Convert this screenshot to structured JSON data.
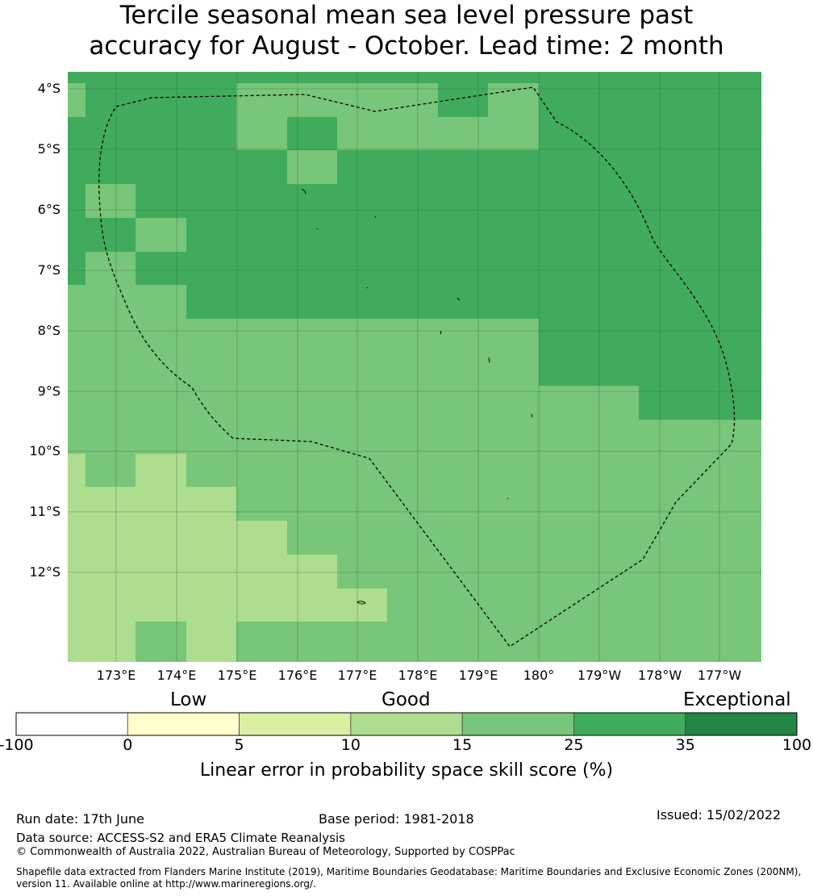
{
  "title": {
    "line1": "Tercile seasonal mean sea level pressure past",
    "line2": "accuracy for August - October. Lead time: 2 month"
  },
  "map": {
    "lat_labels": [
      "4°S",
      "5°S",
      "6°S",
      "7°S",
      "8°S",
      "9°S",
      "10°S",
      "11°S",
      "12°S"
    ],
    "lon_labels": [
      "173°E",
      "174°E",
      "175°E",
      "176°E",
      "177°E",
      "178°E",
      "179°E",
      "180°",
      "179°W",
      "178°W",
      "177°W"
    ],
    "colors": {
      "c35": "#41ab5d",
      "c25": "#78c679",
      "c15": "#addd8e",
      "c10": "#d9f0a3",
      "c5": "#ffffcc",
      "c0": "#ffffff",
      "c100": "#238443"
    },
    "grid_rows": [
      [
        "c35",
        "c35",
        "c35",
        "c35",
        "c35",
        "c35",
        "c35",
        "c35",
        "c35",
        "c35",
        "c35",
        "c35",
        "c35",
        "c35"
      ],
      [
        "c25",
        "c35",
        "c35",
        "c35",
        "c25",
        "c25",
        "c25",
        "c25",
        "c35",
        "c25",
        "c35",
        "c35",
        "c35",
        "c35"
      ],
      [
        "c35",
        "c35",
        "c35",
        "c35",
        "c25",
        "c35",
        "c25",
        "c25",
        "c25",
        "c25",
        "c35",
        "c35",
        "c35",
        "c35"
      ],
      [
        "c35",
        "c35",
        "c35",
        "c35",
        "c35",
        "c25",
        "c35",
        "c35",
        "c35",
        "c35",
        "c35",
        "c35",
        "c35",
        "c35"
      ],
      [
        "c35",
        "c25",
        "c35",
        "c35",
        "c35",
        "c35",
        "c35",
        "c35",
        "c35",
        "c35",
        "c35",
        "c35",
        "c35",
        "c35"
      ],
      [
        "c35",
        "c35",
        "c25",
        "c35",
        "c35",
        "c35",
        "c35",
        "c35",
        "c35",
        "c35",
        "c35",
        "c35",
        "c35",
        "c35"
      ],
      [
        "c35",
        "c25",
        "c35",
        "c35",
        "c35",
        "c35",
        "c35",
        "c35",
        "c35",
        "c35",
        "c35",
        "c35",
        "c35",
        "c35"
      ],
      [
        "c25",
        "c25",
        "c25",
        "c35",
        "c35",
        "c35",
        "c35",
        "c35",
        "c35",
        "c35",
        "c35",
        "c35",
        "c35",
        "c35"
      ],
      [
        "c25",
        "c25",
        "c25",
        "c25",
        "c25",
        "c25",
        "c25",
        "c25",
        "c25",
        "c25",
        "c35",
        "c35",
        "c35",
        "c35"
      ],
      [
        "c25",
        "c25",
        "c25",
        "c25",
        "c25",
        "c25",
        "c25",
        "c25",
        "c25",
        "c25",
        "c35",
        "c35",
        "c35",
        "c35"
      ],
      [
        "c25",
        "c25",
        "c25",
        "c25",
        "c25",
        "c25",
        "c25",
        "c25",
        "c25",
        "c25",
        "c25",
        "c25",
        "c35",
        "c35"
      ],
      [
        "c25",
        "c25",
        "c25",
        "c25",
        "c25",
        "c25",
        "c25",
        "c25",
        "c25",
        "c25",
        "c25",
        "c25",
        "c25",
        "c25"
      ],
      [
        "c15",
        "c25",
        "c15",
        "c25",
        "c25",
        "c25",
        "c25",
        "c25",
        "c25",
        "c25",
        "c25",
        "c25",
        "c25",
        "c25"
      ],
      [
        "c15",
        "c15",
        "c15",
        "c15",
        "c25",
        "c25",
        "c25",
        "c25",
        "c25",
        "c25",
        "c25",
        "c25",
        "c25",
        "c25"
      ],
      [
        "c15",
        "c15",
        "c15",
        "c15",
        "c15",
        "c25",
        "c25",
        "c25",
        "c25",
        "c25",
        "c25",
        "c25",
        "c25",
        "c25"
      ],
      [
        "c15",
        "c15",
        "c15",
        "c15",
        "c15",
        "c15",
        "c25",
        "c25",
        "c25",
        "c25",
        "c25",
        "c25",
        "c25",
        "c25"
      ],
      [
        "c15",
        "c15",
        "c15",
        "c15",
        "c15",
        "c15",
        "c15",
        "c25",
        "c25",
        "c25",
        "c25",
        "c25",
        "c25",
        "c25"
      ],
      [
        "c15",
        "c15",
        "c25",
        "c15",
        "c25",
        "c25",
        "c25",
        "c25",
        "c25",
        "c25",
        "c25",
        "c25",
        "c25",
        "c25"
      ]
    ]
  },
  "colorbar": {
    "categories": [
      "Low",
      "Good",
      "Exceptional"
    ],
    "ticks": [
      "-100",
      "0",
      "5",
      "10",
      "15",
      "25",
      "35",
      "100"
    ],
    "title": "Linear error in probability space skill score (%)",
    "colors": [
      "#ffffff",
      "#ffffcc",
      "#d9f0a3",
      "#addd8e",
      "#78c679",
      "#41ab5d",
      "#238443"
    ]
  },
  "footer": {
    "run_date": "Run date: 17th June",
    "base_period": "Base period: 1981-2018",
    "issued": "Issued: 15/02/2022",
    "data_source": "Data source: ACCESS-S2 and ERA5 Climate Reanalysis",
    "copyright": "© Commonwealth of Australia 2022, Australian Bureau of Meteorology, Supported by COSPPac",
    "shapefile": "Shapefile data extracted from Flanders Marine Institute (2019), Maritime Boundaries Geodatabase: Maritime Boundaries and Exclusive Economic Zones (200NM), version 11. Available online at http://www.marineregions.org/."
  }
}
